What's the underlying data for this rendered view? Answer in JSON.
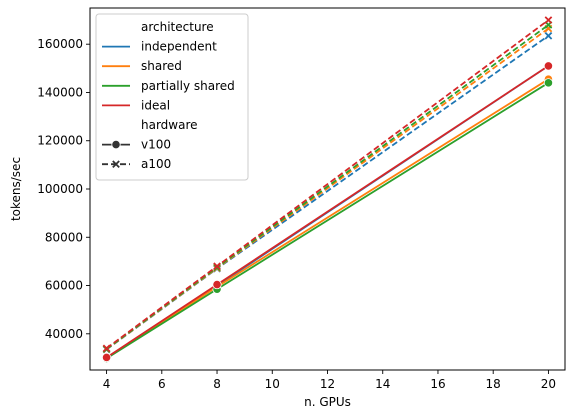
{
  "chart_data": {
    "type": "line",
    "title": "",
    "xlabel": "n. GPUs",
    "ylabel": "tokens/sec",
    "xlim": [
      3.4,
      20.6
    ],
    "ylim": [
      25000,
      175000
    ],
    "xticks": [
      4,
      6,
      8,
      10,
      12,
      14,
      16,
      18,
      20
    ],
    "yticks": [
      40000,
      60000,
      80000,
      100000,
      120000,
      140000,
      160000
    ],
    "x": [
      4,
      8,
      20
    ],
    "grid": false,
    "legend_placement": "top-left",
    "legend": {
      "hue_title": "architecture",
      "style_title": "hardware",
      "hue_entries": [
        {
          "name": "independent",
          "color": "#1f77b4"
        },
        {
          "name": "shared",
          "color": "#ff7f0e"
        },
        {
          "name": "partially shared",
          "color": "#2ca02c"
        },
        {
          "name": "ideal",
          "color": "#d62728"
        }
      ],
      "style_entries": [
        {
          "name": "v100",
          "dash": "solid",
          "marker": "circle"
        },
        {
          "name": "a100",
          "dash": "dashed",
          "marker": "x"
        }
      ]
    },
    "series": [
      {
        "architecture": "independent",
        "hardware": "v100",
        "color": "#1f77b4",
        "dash": "solid",
        "marker": "circle",
        "values": [
          30000,
          60000,
          151000
        ]
      },
      {
        "architecture": "shared",
        "hardware": "v100",
        "color": "#ff7f0e",
        "dash": "solid",
        "marker": "circle",
        "values": [
          30000,
          59500,
          145500
        ]
      },
      {
        "architecture": "partially shared",
        "hardware": "v100",
        "color": "#2ca02c",
        "dash": "solid",
        "marker": "circle",
        "values": [
          29800,
          58500,
          144000
        ]
      },
      {
        "architecture": "ideal",
        "hardware": "v100",
        "color": "#d62728",
        "dash": "solid",
        "marker": "circle",
        "values": [
          30200,
          60400,
          151000
        ]
      },
      {
        "architecture": "independent",
        "hardware": "a100",
        "color": "#1f77b4",
        "dash": "dashed",
        "marker": "x",
        "values": [
          33500,
          67000,
          163500
        ]
      },
      {
        "architecture": "shared",
        "hardware": "a100",
        "color": "#ff7f0e",
        "dash": "dashed",
        "marker": "x",
        "values": [
          33600,
          67200,
          166500
        ]
      },
      {
        "architecture": "partially shared",
        "hardware": "a100",
        "color": "#2ca02c",
        "dash": "dashed",
        "marker": "x",
        "values": [
          33700,
          67500,
          168000
        ]
      },
      {
        "architecture": "ideal",
        "hardware": "a100",
        "color": "#d62728",
        "dash": "dashed",
        "marker": "x",
        "values": [
          34000,
          68000,
          170000
        ]
      }
    ]
  }
}
